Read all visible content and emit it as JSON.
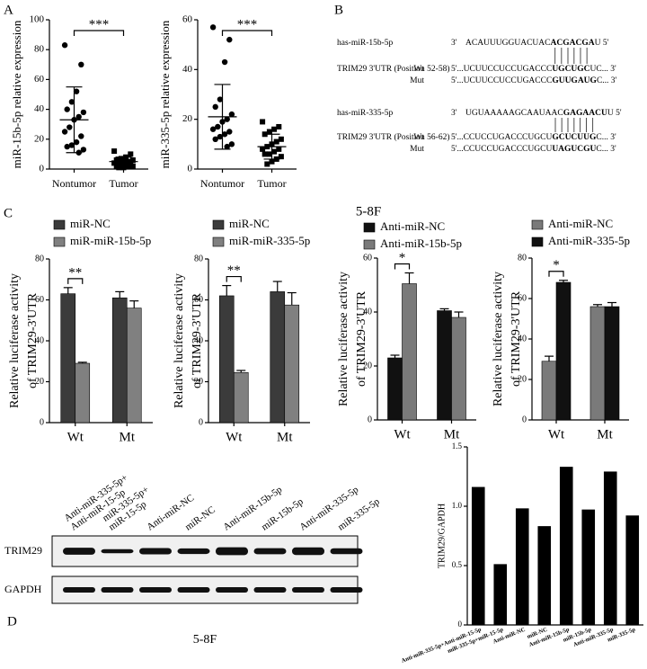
{
  "panel_labels": {
    "a": "A",
    "b": "B",
    "c": "C",
    "d": "D"
  },
  "c_header": "5-8F",
  "alignment": [
    {
      "mirna": "has-miR-15b-5p",
      "mirna_seq": [
        "3'",
        "ACAUUUGGUACUAC",
        "ACGACGA",
        "U 5'"
      ],
      "target": "TRIM29 3'UTR (Position 52-58)",
      "wt_label": "Wt",
      "wt_seq": [
        "5'...UCUUCCUCCUGACCC",
        "UGCUGC",
        "UC... 3'"
      ],
      "mut_label": "Mut",
      "mut_seq": [
        "5'...UCUUCCUCCUGACCC",
        "GUUGAUG",
        "C... 3'"
      ]
    },
    {
      "mirna": "has-miR-335-5p",
      "mirna_seq": [
        "3'",
        "UGUAAAAAGCAAUAAC",
        "GAGAACU",
        "U 5'"
      ],
      "target": "TRIM29 3'UTR (Position 56-62)",
      "wt_label": "Wt",
      "wt_seq": [
        "5'...CCUCCUGACCCUGCU",
        "GCUCUUG",
        "C... 3'"
      ],
      "mut_label": "Mut",
      "mut_seq": [
        "5'...CCUCCUGACCCUGCU",
        "UAGUCGU",
        "C... 3'"
      ]
    }
  ],
  "blot": {
    "lanes": [
      [
        "Anti-miR-335-5p+",
        "Anti-miR-15-5p"
      ],
      [
        "miR-335-5p+",
        "miR-15-5p"
      ],
      [
        "Anti-miR-NC"
      ],
      [
        "miR-NC"
      ],
      [
        "Anti-miR-15b-5p"
      ],
      [
        "miR-15b-5p"
      ],
      [
        "Anti-miR-335-5p"
      ],
      [
        "miR-335-5p"
      ]
    ],
    "rows": [
      "TRIM29",
      "GAPDH"
    ],
    "caption": "5-8F"
  },
  "chart_data": [
    {
      "type": "strip",
      "ylabel": "miR-15b-5p relative expression",
      "categories": [
        "Nontumor",
        "Tumor"
      ],
      "values": [
        [
          83,
          70,
          52,
          45,
          40,
          38,
          35,
          33,
          28,
          25,
          22,
          18,
          16,
          15,
          13,
          11
        ],
        [
          12,
          10,
          8,
          7,
          6,
          6,
          5,
          5,
          4,
          4,
          3,
          3,
          3,
          2,
          2,
          2,
          1,
          1
        ]
      ],
      "markers": [
        "circle",
        "square"
      ],
      "mean": [
        33,
        5
      ],
      "sd": [
        22,
        3
      ],
      "ylim": [
        0,
        100
      ],
      "yticks": [
        0,
        20,
        40,
        60,
        80,
        100
      ],
      "significance": "***"
    },
    {
      "type": "strip",
      "ylabel": "miR-335-5p relative expression",
      "categories": [
        "Nontumor",
        "Tumor"
      ],
      "values": [
        [
          57,
          52,
          43,
          28,
          25,
          22,
          20,
          19,
          17,
          16,
          15,
          14,
          13,
          12,
          10,
          9
        ],
        [
          19,
          17,
          16,
          15,
          14,
          12,
          11,
          10,
          9,
          8,
          8,
          7,
          6,
          6,
          5,
          4,
          3,
          2
        ]
      ],
      "markers": [
        "circle",
        "square"
      ],
      "mean": [
        21,
        9
      ],
      "sd": [
        13,
        5
      ],
      "ylim": [
        0,
        60
      ],
      "yticks": [
        0,
        20,
        40,
        60
      ],
      "significance": "***"
    },
    {
      "type": "bar",
      "ylabel": [
        "Relative luciferase activity",
        "of TRIM29-3'UTR"
      ],
      "categories": [
        "Wt",
        "Mt"
      ],
      "series": [
        {
          "name": "miR-NC",
          "color": "#3b3b3b",
          "values": [
            63,
            61
          ],
          "errors": [
            3,
            3
          ]
        },
        {
          "name": "miR-miR-15b-5p",
          "color": "#808080",
          "values": [
            29,
            56
          ],
          "errors": [
            0.5,
            3.5
          ]
        }
      ],
      "ylim": [
        0,
        80
      ],
      "yticks": [
        0,
        20,
        40,
        60,
        80
      ],
      "significance": "**",
      "legend": "top-left"
    },
    {
      "type": "bar",
      "ylabel": [
        "Relative luciferase activity",
        "of TRIM29-3'UTR"
      ],
      "categories": [
        "Wt",
        "Mt"
      ],
      "series": [
        {
          "name": "miR-NC",
          "color": "#3b3b3b",
          "values": [
            62,
            64
          ],
          "errors": [
            5,
            5
          ]
        },
        {
          "name": "miR-miR-335-5p",
          "color": "#808080",
          "values": [
            24.5,
            57.5
          ],
          "errors": [
            1,
            6
          ]
        }
      ],
      "ylim": [
        0,
        80
      ],
      "yticks": [
        0,
        20,
        40,
        60,
        80
      ],
      "significance": "**",
      "legend": "top-left"
    },
    {
      "type": "bar",
      "ylabel": [
        "Relative luciferase activity",
        "of TRIM29-3'UTR"
      ],
      "categories": [
        "Wt",
        "Mt"
      ],
      "series": [
        {
          "name": "Anti-miR-NC",
          "color": "#111111",
          "values": [
            23,
            40.5
          ],
          "errors": [
            1,
            0.7
          ]
        },
        {
          "name": "Anti-miR-15b-5p",
          "color": "#7a7a7a",
          "values": [
            50.5,
            38
          ],
          "errors": [
            4,
            2
          ]
        }
      ],
      "ylim": [
        0,
        60
      ],
      "yticks": [
        0,
        20,
        40,
        60
      ],
      "significance": "*",
      "legend": "top-left"
    },
    {
      "type": "bar",
      "ylabel": [
        "Relative luciferase activity",
        "of TRIM29-3'UTR"
      ],
      "categories": [
        "Wt",
        "Mt"
      ],
      "series": [
        {
          "name": "Anti-miR-NC",
          "color": "#7a7a7a",
          "values": [
            29,
            56
          ],
          "errors": [
            2.5,
            1
          ]
        },
        {
          "name": "Anti-miR-335-5p",
          "color": "#111111",
          "values": [
            68,
            56
          ],
          "errors": [
            1,
            2
          ]
        }
      ],
      "ylim": [
        0,
        80
      ],
      "yticks": [
        0,
        20,
        40,
        60,
        80
      ],
      "significance": "*",
      "legend": "top-left"
    },
    {
      "type": "bar",
      "ylabel": "TRIM29/GAPDH",
      "categories": [
        "Anti-miR-335-5p+Anti-miR-15-5p",
        "miR-335-5p+miR-15-5p",
        "Anti-miR-NC",
        "miR-NC",
        "Anti-miR-15b-5p",
        "miR-15b-5p",
        "Anti-miR-335-5p",
        "miR-335-5p"
      ],
      "values": [
        1.16,
        0.51,
        0.98,
        0.83,
        1.33,
        0.97,
        1.29,
        0.92
      ],
      "color": "#000000",
      "ylim": [
        0,
        1.5
      ],
      "yticks": [
        0,
        0.5,
        {
          "value": 1,
          "label": "1.0"
        },
        1.5
      ]
    }
  ]
}
